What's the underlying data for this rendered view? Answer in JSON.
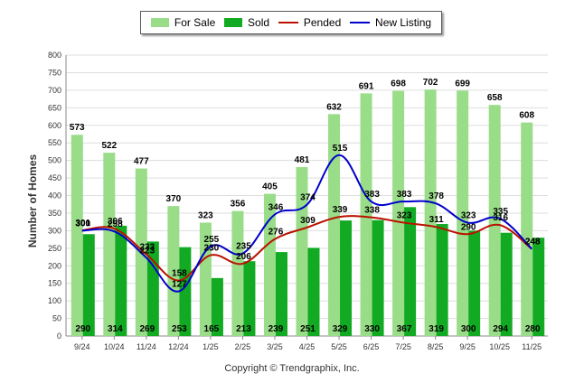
{
  "chart_data": {
    "type": "bar",
    "title": "",
    "xlabel": "",
    "ylabel": "Number of Homes",
    "ylim": [
      0,
      800
    ],
    "yticks": [
      "0",
      "50",
      "100",
      "150",
      "200",
      "250",
      "300",
      "350",
      "400",
      "450",
      "500",
      "550",
      "600",
      "650",
      "700",
      "750",
      "800"
    ],
    "categories": [
      "9/24",
      "10/24",
      "11/24",
      "12/24",
      "1/25",
      "2/25",
      "3/25",
      "4/25",
      "5/25",
      "6/25",
      "7/25",
      "8/25",
      "9/25",
      "10/25",
      "11/25"
    ],
    "series": [
      {
        "name": "For Sale",
        "kind": "bar",
        "color": "#99dd88",
        "values": [
          573,
          522,
          477,
          370,
          323,
          356,
          405,
          481,
          632,
          691,
          698,
          702,
          699,
          658,
          608
        ],
        "labels": [
          "573",
          "522",
          "477",
          "370",
          "323",
          "356",
          "405",
          "481",
          "632",
          "691",
          "698",
          "702",
          "699",
          "658",
          "608"
        ]
      },
      {
        "name": "Sold",
        "kind": "bar",
        "color": "#11aa22",
        "values": [
          290,
          314,
          269,
          253,
          165,
          213,
          239,
          251,
          329,
          330,
          367,
          319,
          300,
          294,
          280
        ],
        "labels": [
          "290",
          "314",
          "269",
          "253",
          "165",
          "213",
          "239",
          "251",
          "329",
          "330",
          "367",
          "319",
          "300",
          "294",
          "280"
        ]
      },
      {
        "name": "Pended",
        "kind": "line",
        "color": "#bb1100",
        "values": [
          301,
          306,
          233,
          158,
          230,
          206,
          276,
          309,
          339,
          338,
          323,
          311,
          290,
          316,
          248
        ],
        "labels": [
          "301",
          "306",
          "233",
          "158",
          "230",
          "206",
          "276",
          "309",
          "339",
          "338",
          "323",
          "311",
          "290",
          "316",
          "248"
        ]
      },
      {
        "name": "New Listing",
        "kind": "line",
        "color": "#0000cc",
        "values": [
          300,
          298,
          223,
          127,
          255,
          235,
          346,
          374,
          515,
          383,
          383,
          378,
          323,
          335,
          248
        ],
        "labels": [
          "300",
          "298",
          "223",
          "127",
          "255",
          "235",
          "346",
          "374",
          "515",
          "383",
          "383",
          "378",
          "323",
          "335",
          "248"
        ]
      }
    ]
  },
  "footer": {
    "copyright": "Copyright © Trendgraphix, Inc."
  }
}
